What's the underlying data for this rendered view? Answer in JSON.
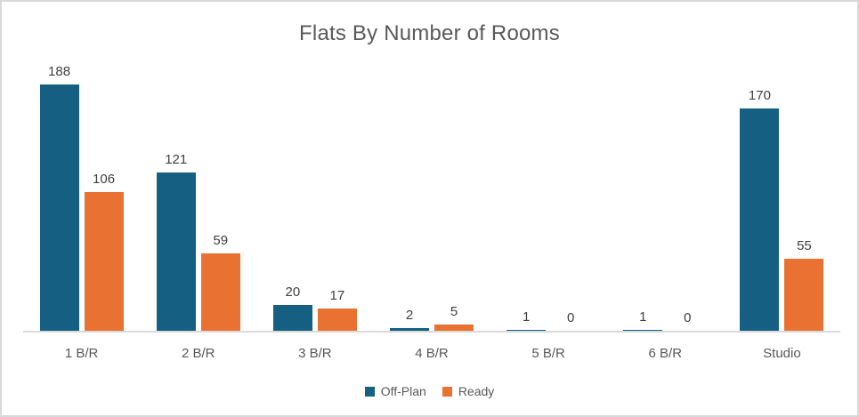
{
  "chart_data": {
    "type": "bar",
    "title": "Flats By Number of Rooms",
    "categories": [
      "1 B/R",
      "2 B/R",
      "3 B/R",
      "4 B/R",
      "5 B/R",
      "6 B/R",
      "Studio"
    ],
    "series": [
      {
        "name": "Off-Plan",
        "color": "#156082",
        "values": [
          188,
          121,
          20,
          2,
          1,
          1,
          170
        ]
      },
      {
        "name": "Ready",
        "color": "#E97132",
        "values": [
          106,
          59,
          17,
          5,
          0,
          0,
          55
        ]
      }
    ],
    "xlabel": "",
    "ylabel": "",
    "ylim": [
      0,
      200
    ],
    "grid": false,
    "y_axis_visible": false,
    "data_labels": true,
    "legend_position": "bottom"
  },
  "style": {
    "title_color": "#595959",
    "data_label_color": "#404040",
    "category_label_color": "#595959",
    "legend_text_color": "#595959",
    "axis_line_color": "#D9D9D9",
    "frame_border_color": "#D9D9D9",
    "background": "#FFFFFF"
  }
}
